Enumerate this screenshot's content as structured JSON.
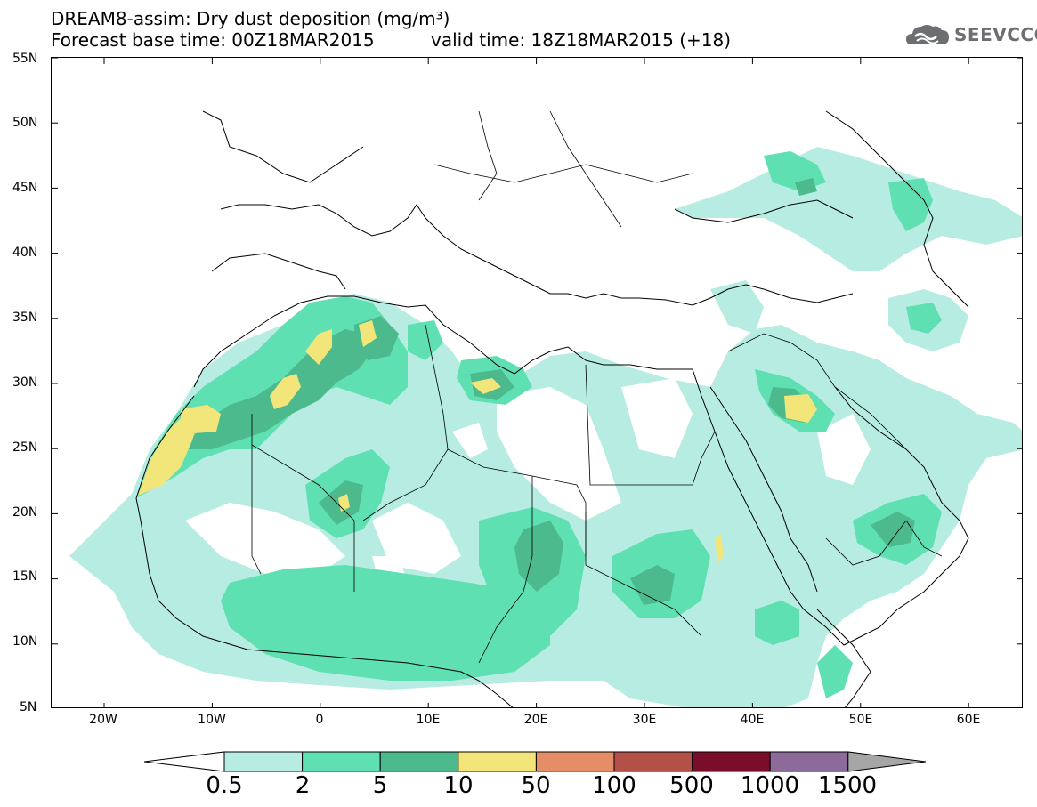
{
  "header": {
    "title_line1": "DREAM8-assim: Dry dust deposition (mg/m³)",
    "forecast_base": "Forecast base time: 00Z18MAR2015",
    "valid_time": "valid time: 18Z18MAR2015 (+18)"
  },
  "logo": {
    "text": "SEEVCCC",
    "icon": "cloud-icon"
  },
  "map": {
    "lat_labels": [
      "55N",
      "50N",
      "45N",
      "40N",
      "35N",
      "30N",
      "25N",
      "20N",
      "15N",
      "10N",
      "5N"
    ],
    "lon_labels": [
      "20W",
      "10W",
      "0",
      "10E",
      "20E",
      "30E",
      "40E",
      "50E",
      "60E"
    ]
  },
  "legend": {
    "labels": [
      "0.5",
      "2",
      "5",
      "10",
      "50",
      "100",
      "500",
      "1000",
      "1500"
    ],
    "colors": [
      "#ffffff",
      "#b6ece1",
      "#5fe0b2",
      "#4dba8d",
      "#f2e67a",
      "#e58d66",
      "#b35148",
      "#7a0e2a",
      "#8c6a9a",
      "#a6a6a6"
    ]
  }
}
